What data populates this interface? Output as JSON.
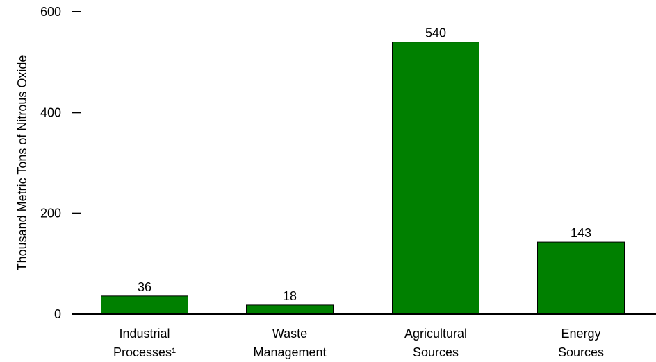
{
  "chart_data": {
    "type": "bar",
    "title": "",
    "xlabel": "",
    "ylabel": "Thousand Metric Tons of Nitrous Oxide",
    "categories": [
      [
        "Industrial",
        "Processes¹"
      ],
      [
        "Waste",
        "Management"
      ],
      [
        "Agricultural",
        "Sources"
      ],
      [
        "Energy",
        "Sources"
      ]
    ],
    "values": [
      36,
      18,
      540,
      143
    ],
    "data_labels": [
      "36",
      "18",
      "540",
      "143"
    ],
    "ylim": [
      0,
      600
    ],
    "yticks": [
      0,
      200,
      400,
      600
    ],
    "ytick_labels": [
      "0",
      "200",
      "400",
      "600"
    ],
    "grid": false,
    "legend": "none",
    "colors": {
      "bar_fill": "#008000",
      "bar_stroke": "#000000",
      "axis": "#000000"
    }
  }
}
